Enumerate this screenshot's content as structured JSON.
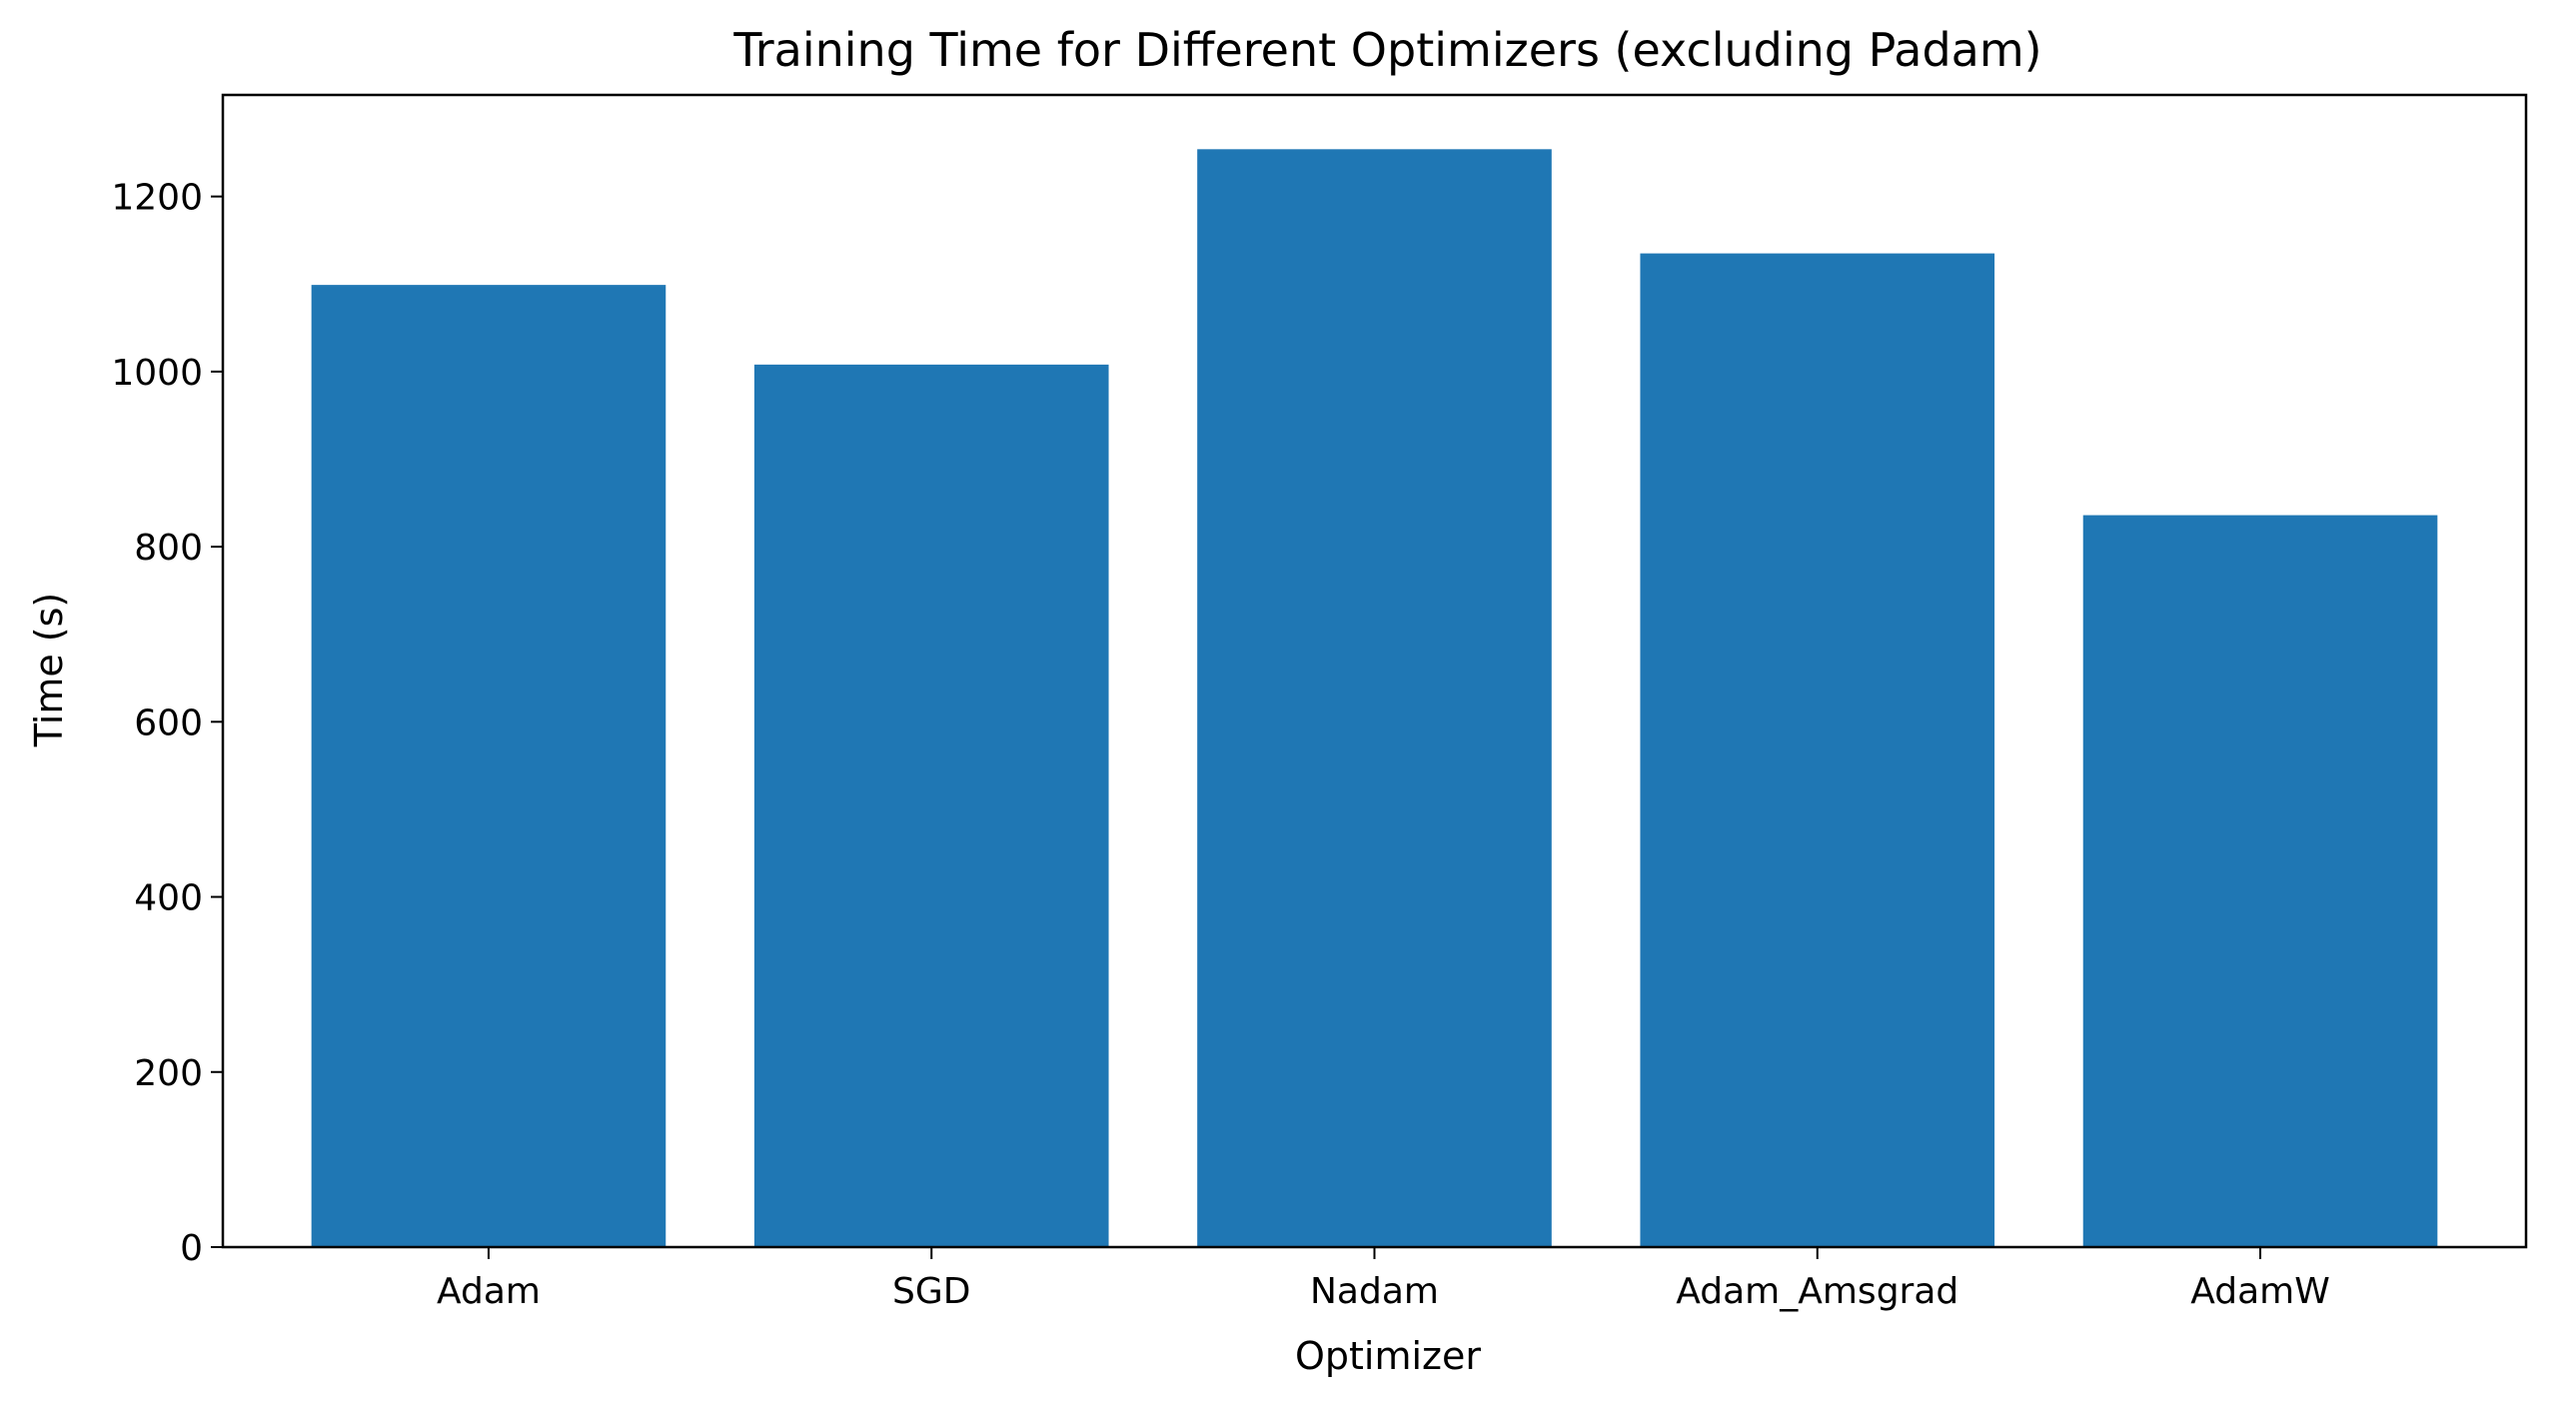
{
  "colors": {
    "bar": "#1f77b4",
    "axis": "#000000"
  },
  "chart_data": {
    "type": "bar",
    "title": "Training Time for Different Optimizers (excluding Padam)",
    "xlabel": "Optimizer",
    "ylabel": "Time (s)",
    "categories": [
      "Adam",
      "SGD",
      "Nadam",
      "Adam_Amsgrad",
      "AdamW"
    ],
    "values": [
      1099,
      1008,
      1254,
      1135,
      836
    ],
    "ylim": [
      0,
      1316
    ],
    "yticks": [
      0,
      200,
      400,
      600,
      800,
      1000,
      1200
    ],
    "grid": false,
    "legend": "none"
  }
}
